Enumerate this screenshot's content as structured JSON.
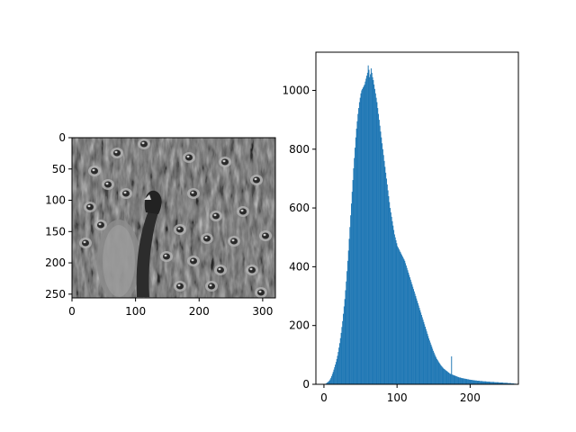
{
  "chart_data": [
    {
      "type": "image",
      "colormap": "gray",
      "content": "peacock-grayscale-photo",
      "image_width": 320,
      "image_height": 256,
      "xlim": [
        0,
        320
      ],
      "ylim": [
        256,
        0
      ],
      "xticks": [
        0,
        100,
        200,
        300
      ],
      "yticks": [
        0,
        50,
        100,
        150,
        200,
        250
      ],
      "grid": false
    },
    {
      "type": "bar",
      "style": "histogram",
      "bar_color": "#1f77b4",
      "bin_width": 1,
      "x_start": 0,
      "xlim": [
        -11,
        266
      ],
      "ylim": [
        0,
        1130
      ],
      "xticks": [
        0,
        100,
        200
      ],
      "yticks": [
        0,
        200,
        400,
        600,
        800,
        1000
      ],
      "grid": false,
      "values": [
        0,
        0,
        2,
        4,
        6,
        8,
        10,
        13,
        17,
        22,
        28,
        35,
        42,
        50,
        58,
        67,
        76,
        86,
        97,
        110,
        125,
        140,
        157,
        175,
        195,
        215,
        240,
        265,
        290,
        320,
        350,
        385,
        420,
        455,
        495,
        535,
        575,
        615,
        655,
        695,
        735,
        770,
        805,
        840,
        870,
        895,
        920,
        940,
        960,
        975,
        990,
        1000,
        1005,
        1010,
        1015,
        1020,
        1030,
        1040,
        1050,
        1060,
        1085,
        1070,
        1045,
        1055,
        1075,
        1060,
        1045,
        1035,
        1020,
        1005,
        990,
        975,
        960,
        940,
        920,
        900,
        880,
        860,
        840,
        820,
        800,
        780,
        760,
        740,
        720,
        700,
        680,
        660,
        640,
        620,
        600,
        585,
        570,
        555,
        540,
        525,
        510,
        500,
        490,
        480,
        470,
        465,
        460,
        455,
        450,
        445,
        440,
        435,
        430,
        425,
        420,
        412,
        404,
        396,
        388,
        380,
        372,
        364,
        356,
        348,
        340,
        332,
        324,
        316,
        308,
        300,
        292,
        284,
        276,
        268,
        260,
        252,
        244,
        236,
        228,
        220,
        212,
        204,
        196,
        188,
        180,
        172,
        164,
        156,
        149,
        142,
        135,
        128,
        121,
        114,
        108,
        102,
        96,
        91,
        86,
        82,
        78,
        74,
        70,
        66,
        63,
        60,
        57,
        54,
        52,
        50,
        48,
        46,
        44,
        42,
        40,
        38,
        36,
        35,
        95,
        33,
        32,
        31,
        30,
        29,
        28,
        27,
        26,
        25,
        24,
        23,
        23,
        22,
        21,
        21,
        20,
        20,
        19,
        19,
        18,
        18,
        17,
        17,
        16,
        16,
        15,
        15,
        15,
        14,
        14,
        14,
        13,
        13,
        13,
        12,
        12,
        12,
        12,
        11,
        11,
        11,
        11,
        10,
        10,
        10,
        10,
        10,
        9,
        9,
        9,
        9,
        9,
        8,
        8,
        8,
        8,
        8,
        8,
        7,
        7,
        7,
        7,
        7,
        7,
        6,
        6,
        6,
        6,
        6,
        6,
        5,
        5,
        5,
        5,
        5,
        5,
        4,
        4,
        4,
        4,
        4,
        3,
        3,
        3,
        3,
        2,
        2,
        2,
        1,
        1,
        1,
        0
      ]
    }
  ]
}
